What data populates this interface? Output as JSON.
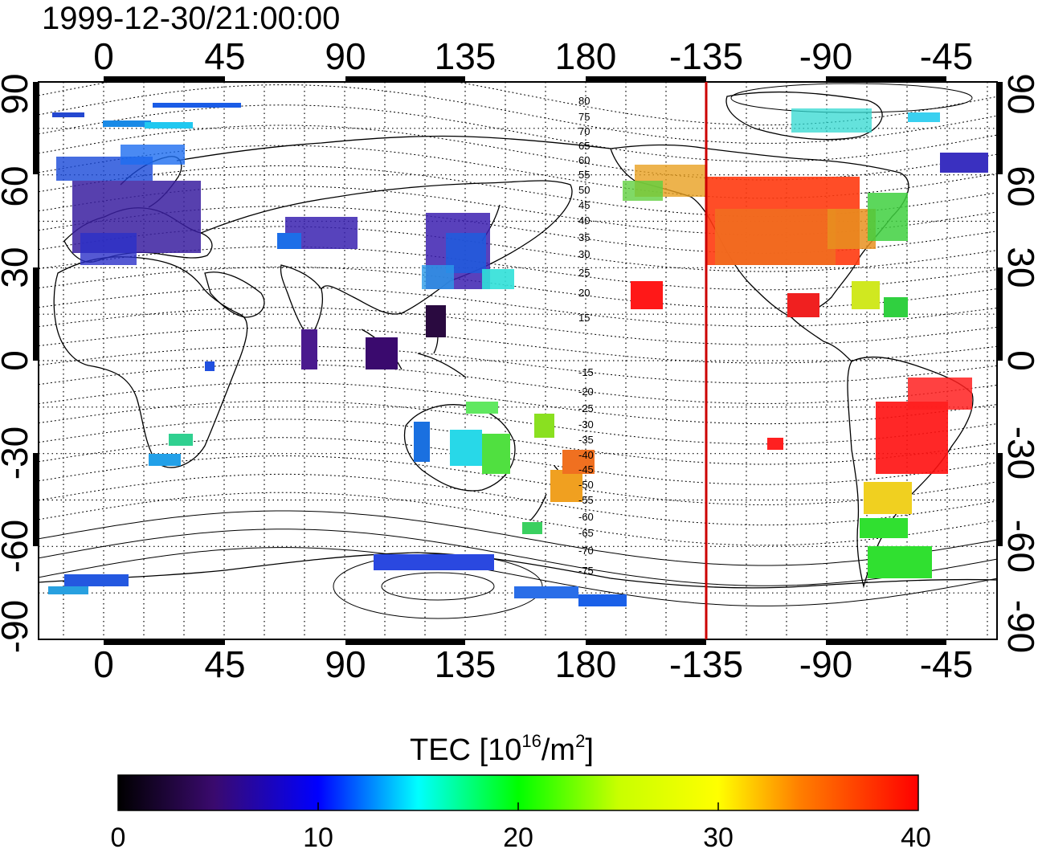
{
  "title": "1999-12-30/21:00:00",
  "map": {
    "top_longitude_ticks": [
      "0",
      "45",
      "90",
      "135",
      "180",
      "-135",
      "-90",
      "-45"
    ],
    "bottom_longitude_ticks": [
      "0",
      "45",
      "90",
      "135",
      "180",
      "-135",
      "-90",
      "-45"
    ],
    "left_latitude_ticks": [
      "90",
      "60",
      "30",
      "0",
      "-30",
      "-60",
      "-90"
    ],
    "right_latitude_ticks": [
      "90",
      "60",
      "30",
      "0",
      "-30",
      "-60",
      "-90"
    ],
    "magnetic_latitude_labels_north": [
      "80",
      "75",
      "70",
      "65",
      "60",
      "55",
      "50",
      "45",
      "40",
      "35",
      "30",
      "25",
      "20",
      "15"
    ],
    "magnetic_latitude_labels_south": [
      "-15",
      "-20",
      "-25",
      "-30",
      "-35",
      "-40",
      "-45",
      "-50",
      "-55",
      "-60",
      "-65",
      "-70",
      "-75"
    ],
    "terminator_longitude": -135,
    "terminator_color": "#cc0000"
  },
  "colorbar": {
    "title_main": "TEC  [10",
    "title_sup": "16",
    "title_mid": "/m",
    "title_sup2": "2",
    "title_end": "]",
    "tick_labels": [
      "0",
      "10",
      "20",
      "30",
      "40"
    ],
    "min": 0,
    "max": 40,
    "colors": [
      "#000000",
      "#3a0a6e",
      "#0000ff",
      "#00ffff",
      "#00ff00",
      "#ffff00",
      "#ff8000",
      "#ff0000"
    ]
  }
}
